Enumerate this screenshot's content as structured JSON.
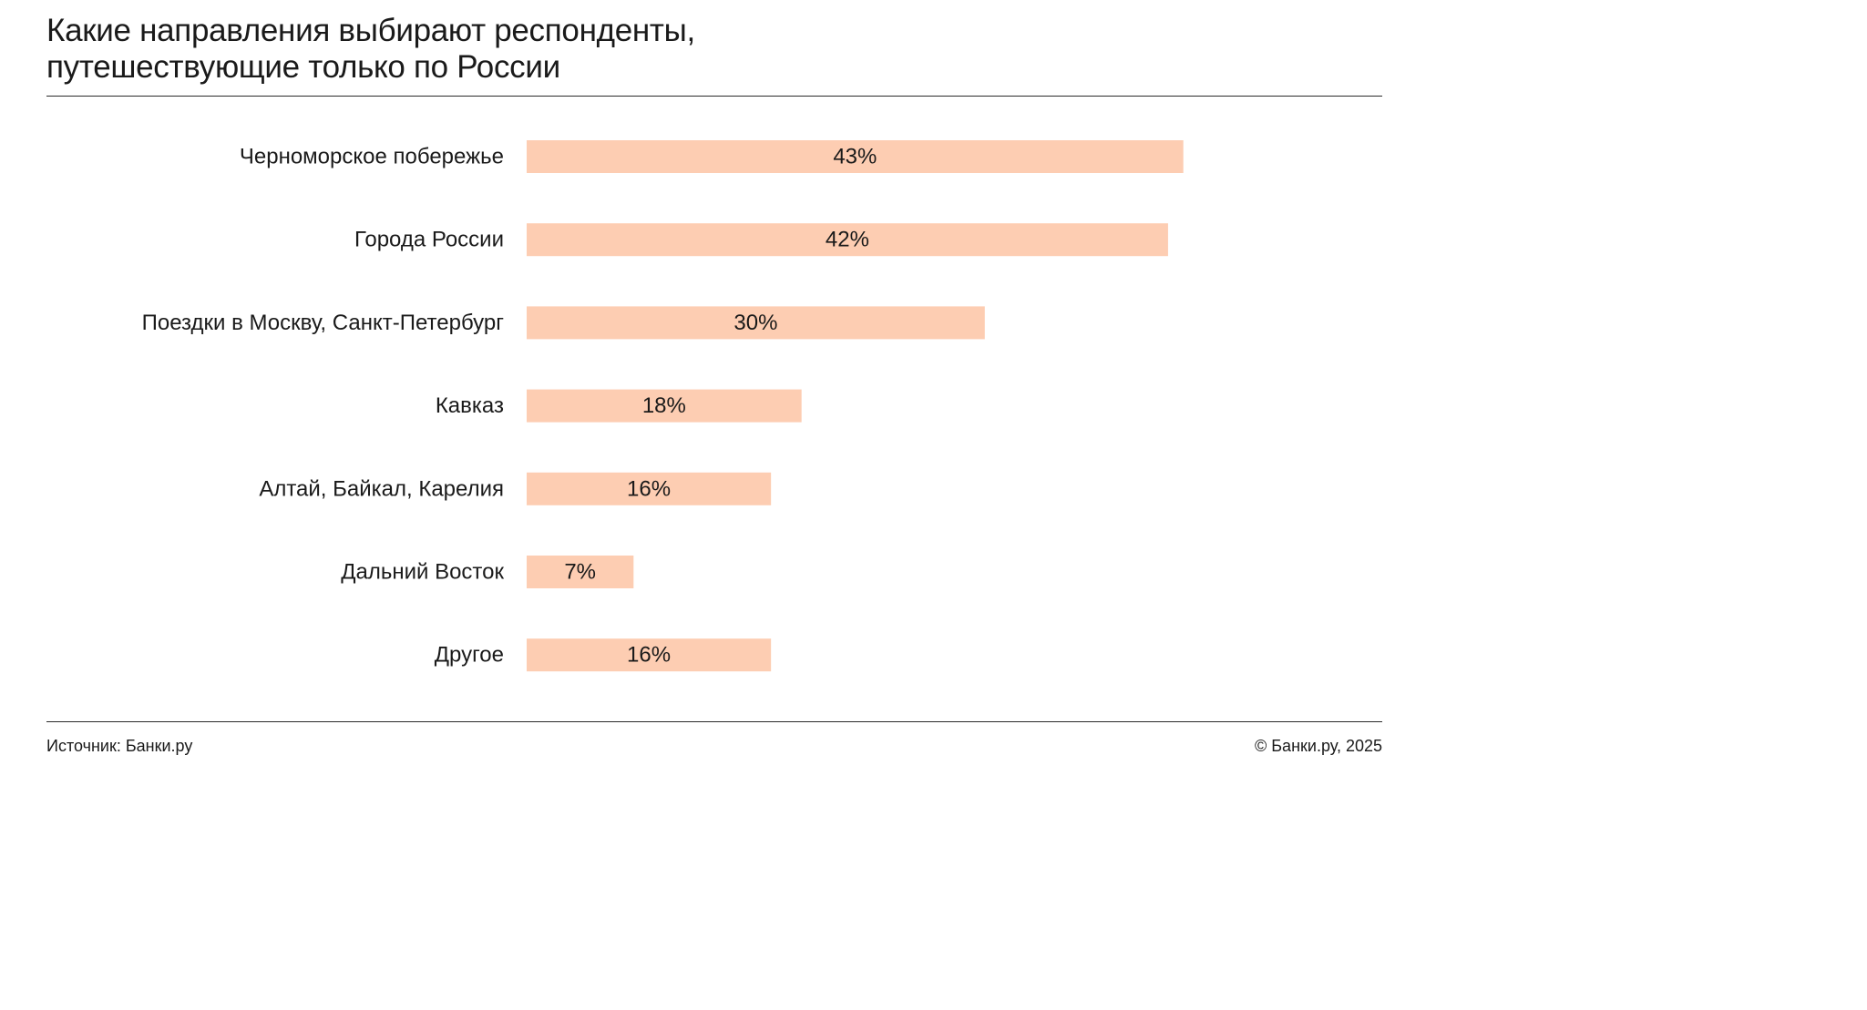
{
  "header": {
    "title_line1": "Какие направления выбирают респонденты,",
    "title_line2": "путешествующие только по России"
  },
  "footer": {
    "source": "Источник: Банки.ру",
    "copyright": "© Банки.ру, 2025"
  },
  "colors": {
    "bar": "#fdcdb2",
    "text": "#1a1a1a",
    "rule": "#2a2a2a"
  },
  "chart_data": {
    "type": "bar",
    "orientation": "horizontal",
    "title": "Какие направления выбирают респонденты, путешествующие только по России",
    "categories": [
      "Черноморское побережье",
      "Города России",
      "Поездки в Москву, Санкт-Петербург",
      "Кавказ",
      "Алтай, Байкал, Карелия",
      "Дальний Восток",
      "Другое"
    ],
    "values": [
      43,
      42,
      30,
      18,
      16,
      7,
      16
    ],
    "value_labels": [
      "43%",
      "42%",
      "30%",
      "18%",
      "16%",
      "7%",
      "16%"
    ],
    "unit": "%",
    "xlabel": "",
    "ylabel": "",
    "grid": false,
    "legend": "none"
  }
}
